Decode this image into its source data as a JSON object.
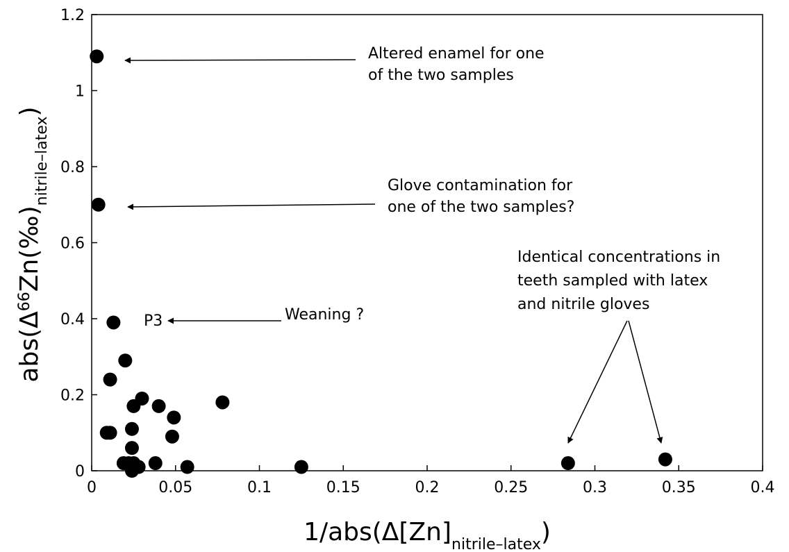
{
  "chart_data": {
    "type": "scatter",
    "title": "",
    "xlabel": {
      "prefix": "1/abs(Δ[Zn]",
      "sub": "nitrile–latex",
      "suffix": ")"
    },
    "ylabel": {
      "prefix": "abs(Δ",
      "sup": "66",
      "mid": "Zn(‰)",
      "sub": "nitrile–latex",
      "suffix": ")"
    },
    "xlim": [
      0,
      0.4
    ],
    "ylim": [
      0,
      1.2
    ],
    "xticks": [
      "0",
      "0.05",
      "0.1",
      "0.15",
      "0.2",
      "0.25",
      "0.3",
      "0.35",
      "0.4"
    ],
    "yticks": [
      "0",
      "0.2",
      "0.4",
      "0.6",
      "0.8",
      "1",
      "1.2"
    ],
    "grid": false,
    "legend": "none",
    "marker_color": "#000000",
    "series": [
      {
        "points": [
          {
            "x": 0.003,
            "y": 1.09
          },
          {
            "x": 0.004,
            "y": 0.7
          },
          {
            "x": 0.013,
            "y": 0.39
          },
          {
            "x": 0.02,
            "y": 0.29
          },
          {
            "x": 0.011,
            "y": 0.24
          },
          {
            "x": 0.009,
            "y": 0.1
          },
          {
            "x": 0.011,
            "y": 0.1
          },
          {
            "x": 0.025,
            "y": 0.17
          },
          {
            "x": 0.03,
            "y": 0.19
          },
          {
            "x": 0.04,
            "y": 0.17
          },
          {
            "x": 0.049,
            "y": 0.14
          },
          {
            "x": 0.024,
            "y": 0.11
          },
          {
            "x": 0.048,
            "y": 0.09
          },
          {
            "x": 0.024,
            "y": 0.06
          },
          {
            "x": 0.019,
            "y": 0.02
          },
          {
            "x": 0.022,
            "y": 0.02
          },
          {
            "x": 0.025,
            "y": 0.02
          },
          {
            "x": 0.028,
            "y": 0.01
          },
          {
            "x": 0.024,
            "y": 0.0
          },
          {
            "x": 0.038,
            "y": 0.02
          },
          {
            "x": 0.057,
            "y": 0.01
          },
          {
            "x": 0.078,
            "y": 0.18
          },
          {
            "x": 0.125,
            "y": 0.01
          },
          {
            "x": 0.284,
            "y": 0.02
          },
          {
            "x": 0.342,
            "y": 0.03
          }
        ]
      }
    ],
    "annotations": [
      {
        "lines": [
          "Altered enamel  for one",
          "of the two samples"
        ]
      },
      {
        "lines": [
          "Glove contamination for",
          "one  of the two samples?"
        ]
      },
      {
        "lines": [
          "Weaning ?"
        ]
      },
      {
        "lines": [
          "P3"
        ]
      },
      {
        "lines": [
          "Identical concentrations in",
          "teeth sampled with latex",
          "and nitrile gloves"
        ]
      }
    ]
  }
}
